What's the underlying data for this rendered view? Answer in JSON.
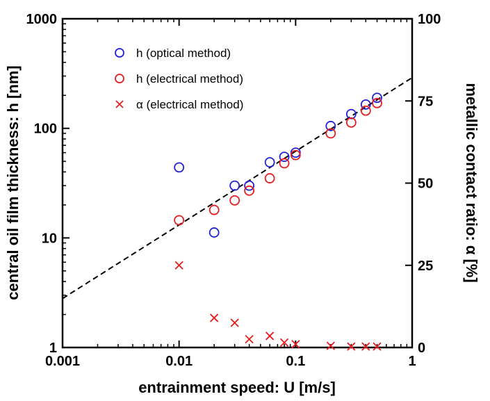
{
  "chart_data": {
    "type": "scatter",
    "xlabel": "entrainment speed: U [m/s]",
    "ylabel_left": "central oil film thickness: h [nm]",
    "ylabel_right": "metallic contact ratio: α [%]",
    "x_scale": "log",
    "y_left_scale": "log",
    "y_right_scale": "linear",
    "xlim": [
      0.001,
      1
    ],
    "ylim_left": [
      1,
      1000
    ],
    "ylim_right": [
      0,
      100
    ],
    "x_ticks": [
      "0.001",
      "0.01",
      "0.1",
      "1"
    ],
    "y_left_ticks": [
      "1",
      "10",
      "100",
      "1000"
    ],
    "y_right_ticks": [
      "0",
      "25",
      "50",
      "75",
      "100"
    ],
    "grid": false,
    "legend_position": "top-left",
    "series": [
      {
        "name": "h (optical method)",
        "axis": "left",
        "marker": "circle",
        "color": "#1f1fe0",
        "x": [
          0.01,
          0.02,
          0.03,
          0.04,
          0.06,
          0.08,
          0.1,
          0.2,
          0.3,
          0.4,
          0.5
        ],
        "y": [
          44,
          11.2,
          30,
          30,
          49,
          55,
          60,
          105,
          135,
          165,
          190
        ]
      },
      {
        "name": "h (electrical method)",
        "axis": "left",
        "marker": "circle",
        "color": "#e81c1c",
        "x": [
          0.01,
          0.02,
          0.03,
          0.04,
          0.06,
          0.08,
          0.1,
          0.2,
          0.3,
          0.4,
          0.5
        ],
        "y": [
          14.5,
          18,
          22,
          27,
          35,
          48,
          57,
          90,
          113,
          145,
          170
        ]
      },
      {
        "name": "α (electrical method)",
        "axis": "right",
        "marker": "x",
        "color": "#e81c1c",
        "x": [
          0.01,
          0.02,
          0.03,
          0.04,
          0.06,
          0.08,
          0.1,
          0.2,
          0.3,
          0.4,
          0.5
        ],
        "y": [
          25,
          9,
          7.5,
          2.5,
          3.5,
          1.5,
          1,
          0.5,
          0.3,
          0.3,
          0.3
        ]
      }
    ],
    "fit_line": {
      "style": "dashed",
      "color": "#000000",
      "axis": "left",
      "x": [
        0.001,
        1
      ],
      "y": [
        2.8,
        290
      ]
    }
  }
}
